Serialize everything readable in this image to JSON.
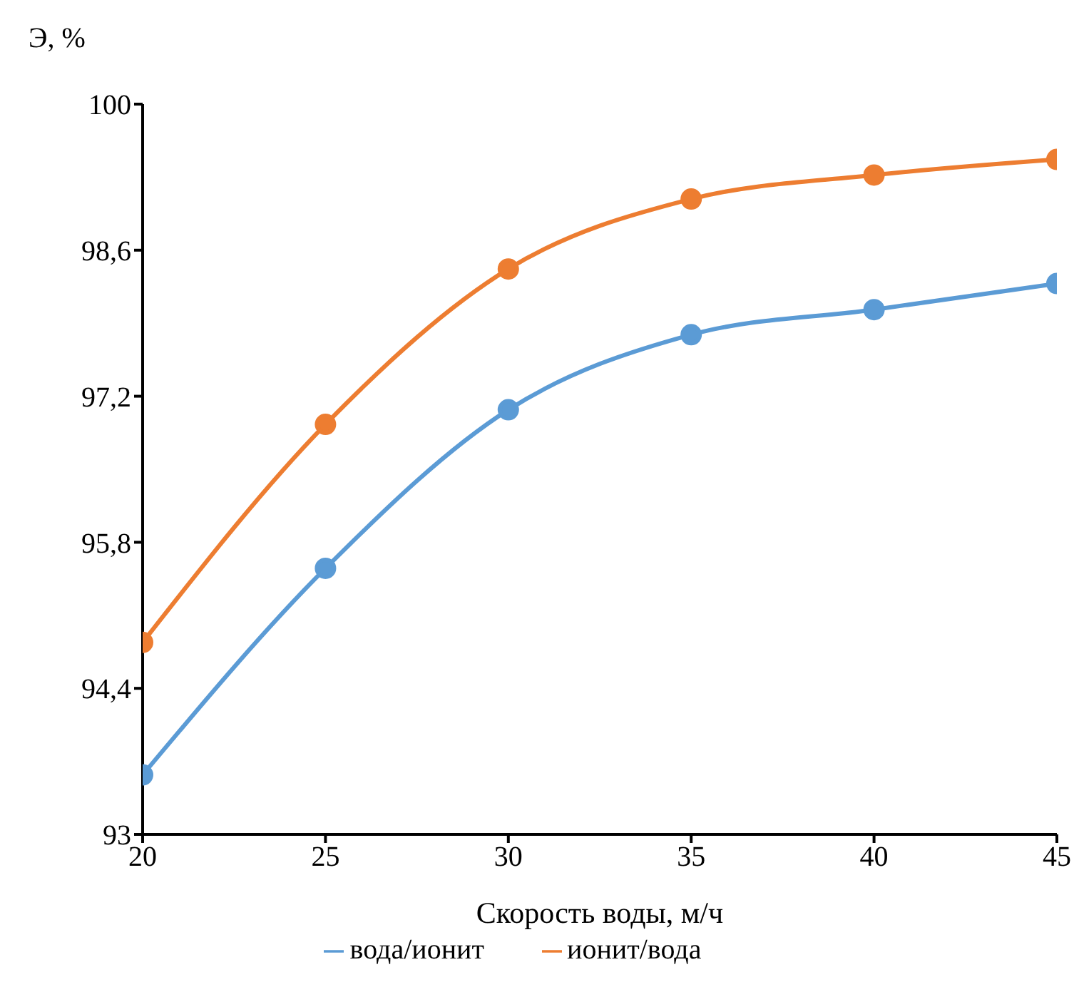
{
  "chart_data": {
    "type": "line",
    "xlabel": "Скорость воды, м/ч",
    "ylabel": "Э, %",
    "x": [
      20,
      25,
      30,
      35,
      40,
      45
    ],
    "series": [
      {
        "name": "вода/ионит",
        "color": "#5b9bd5",
        "values": [
          93.57,
          95.55,
          97.07,
          97.79,
          98.03,
          98.28
        ]
      },
      {
        "name": "ионит/вода",
        "color": "#ed7d31",
        "values": [
          94.84,
          96.93,
          98.42,
          99.09,
          99.32,
          99.47
        ]
      }
    ],
    "xlim": [
      20,
      45
    ],
    "xticks": [
      20,
      25,
      30,
      35,
      40,
      45
    ],
    "ylim": [
      93,
      100
    ],
    "yticks": [
      {
        "value": 93,
        "label": "93"
      },
      {
        "value": 94.4,
        "label": "94,4"
      },
      {
        "value": 95.8,
        "label": "95,8"
      },
      {
        "value": 97.2,
        "label": "97,2"
      },
      {
        "value": 98.6,
        "label": "98,6"
      },
      {
        "value": 100,
        "label": "100"
      }
    ],
    "grid": false,
    "legend": "bottom",
    "marker": "circle",
    "line_style": "solid"
  }
}
